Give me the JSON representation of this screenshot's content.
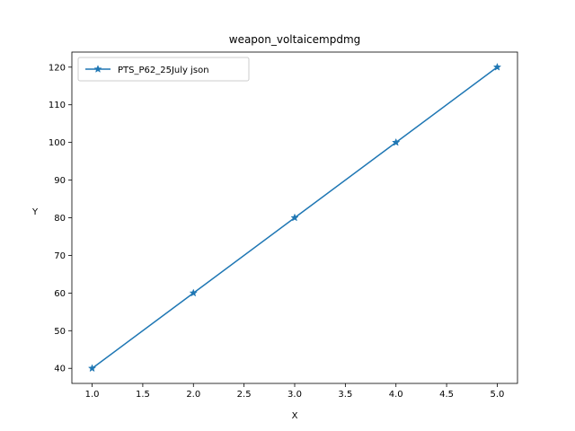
{
  "chart_data": {
    "type": "line",
    "title": "weapon_voltaicempdmg",
    "xlabel": "X",
    "ylabel": "Y",
    "xlim": [
      0.8,
      5.2
    ],
    "ylim": [
      36,
      124
    ],
    "xticks": [
      "1.0",
      "1.5",
      "2.0",
      "2.5",
      "3.0",
      "3.5",
      "4.0",
      "4.5",
      "5.0"
    ],
    "yticks": [
      "40",
      "50",
      "60",
      "70",
      "80",
      "90",
      "100",
      "110",
      "120"
    ],
    "grid": false,
    "legend": "upper-left",
    "series": [
      {
        "name": "PTS_P62_25July json",
        "color": "#1f77b4",
        "marker": "star",
        "x": [
          1,
          2,
          3,
          4,
          5
        ],
        "y": [
          40,
          60,
          80,
          100,
          120
        ]
      }
    ]
  }
}
